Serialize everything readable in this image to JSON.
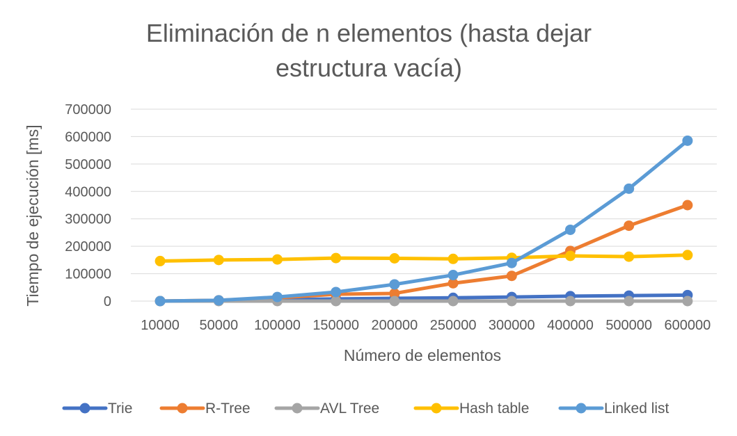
{
  "chart_data": {
    "type": "line",
    "title_lines": [
      "Eliminación de n elementos (hasta dejar",
      "estructura vacía)"
    ],
    "xlabel": "Número de elementos",
    "ylabel": "Tiempo de ejecución [ms]",
    "categories": [
      "10000",
      "50000",
      "100000",
      "150000",
      "200000",
      "250000",
      "300000",
      "400000",
      "500000",
      "600000"
    ],
    "y_ticks": [
      "0",
      "100000",
      "200000",
      "300000",
      "400000",
      "500000",
      "600000",
      "700000"
    ],
    "ylim": [
      0,
      700000
    ],
    "grid": true,
    "legend_position": "bottom",
    "series": [
      {
        "name": "Trie",
        "color": "#4472C4",
        "values": [
          0,
          2000,
          5000,
          8000,
          10000,
          12000,
          15000,
          18000,
          20000,
          22000
        ]
      },
      {
        "name": "R-Tree",
        "color": "#ED7D31",
        "values": [
          0,
          3000,
          12000,
          25000,
          28000,
          65000,
          92000,
          183000,
          275000,
          350000
        ]
      },
      {
        "name": "AVL Tree",
        "color": "#A5A5A5",
        "values": [
          0,
          0,
          0,
          0,
          0,
          0,
          0,
          0,
          0,
          0
        ]
      },
      {
        "name": "Hash table",
        "color": "#FFC000",
        "values": [
          146000,
          150000,
          152000,
          157000,
          156000,
          154000,
          158000,
          165000,
          162000,
          168000
        ]
      },
      {
        "name": "Linked list",
        "color": "#5B9BD5",
        "values": [
          0,
          3000,
          15000,
          33000,
          61000,
          95000,
          139000,
          260000,
          410000,
          585000
        ]
      }
    ]
  }
}
